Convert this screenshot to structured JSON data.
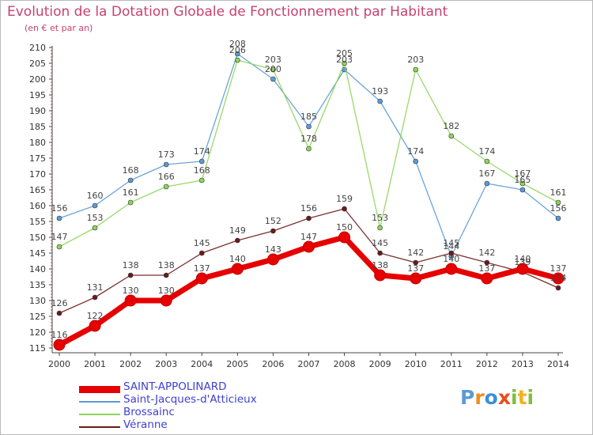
{
  "header": {
    "title": "Evolution de la Dotation Globale de Fonctionnement par Habitant",
    "subtitle": "(en € et par an)"
  },
  "logo": {
    "letters": [
      "P",
      "r",
      "o",
      "x",
      "i",
      "t",
      "i"
    ],
    "colors": [
      "#5b9bd5",
      "#f08c1e",
      "#3b8fd8",
      "#e94e1b",
      "#7dbf3a",
      "#f0b21e",
      "#7dbf3a"
    ]
  },
  "chart_data": {
    "type": "line",
    "x": [
      2000,
      2001,
      2002,
      2003,
      2004,
      2005,
      2006,
      2007,
      2008,
      2009,
      2010,
      2011,
      2012,
      2013,
      2014
    ],
    "ylim": [
      115,
      210
    ],
    "yticks": [
      115,
      120,
      125,
      130,
      135,
      140,
      145,
      150,
      155,
      160,
      165,
      170,
      175,
      180,
      185,
      190,
      195,
      200,
      205,
      210
    ],
    "grid": false,
    "legend_position": "bottom-left",
    "series": [
      {
        "name": "SAINT-APPOLINARD",
        "color": "#e60000",
        "values": [
          116,
          122,
          130,
          130,
          137,
          140,
          143,
          147,
          150,
          138,
          137,
          140,
          137,
          140,
          137
        ]
      },
      {
        "name": "Saint-Jacques-d'Atticieux",
        "color": "#5b9bd5",
        "values": [
          156,
          160,
          168,
          173,
          174,
          208,
          200,
          185,
          203,
          193,
          174,
          144,
          167,
          165,
          156
        ]
      },
      {
        "name": "Brossainc",
        "color": "#8fd45a",
        "values": [
          147,
          153,
          161,
          166,
          168,
          206,
          203,
          178,
          205,
          153,
          203,
          182,
          174,
          167,
          161
        ]
      },
      {
        "name": "Véranne",
        "color": "#6b1a1a",
        "values": [
          126,
          131,
          138,
          138,
          145,
          149,
          152,
          156,
          159,
          145,
          142,
          145,
          142,
          139,
          134
        ]
      }
    ]
  }
}
